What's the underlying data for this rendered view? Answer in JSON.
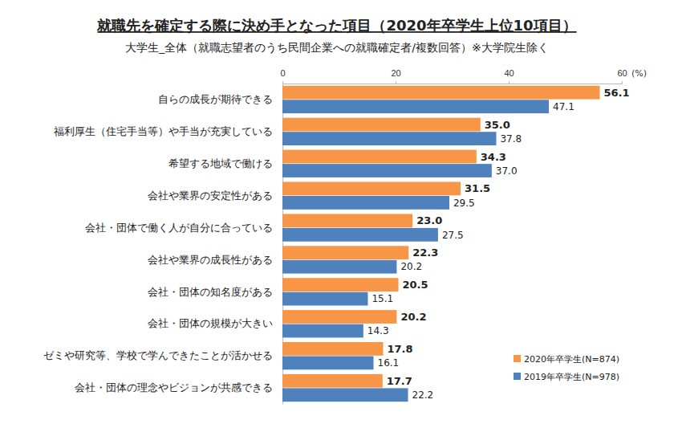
{
  "chart_data": {
    "type": "bar",
    "orientation": "horizontal",
    "title": "就職先を確定する際に決め手となった項目（2020年卒学生上位10項目）",
    "subtitle": "大学生_全体（就職志望者のうち民間企業への就職確定者/複数回答）※大学院生除く",
    "xlabel": "(%)",
    "categories": [
      "自らの成長が期待できる",
      "福利厚生（住宅手当等）や手当が充実している",
      "希望する地域で働ける",
      "会社や業界の安定性がある",
      "会社・団体で働く人が自分に合っている",
      "会社や業界の成長性がある",
      "会社・団体の知名度がある",
      "会社・団体の規模が大きい",
      "ゼミや研究等、学校で学んできたことが活かせる",
      "会社・団体の理念やビジョンが共感できる"
    ],
    "series": [
      {
        "name": "2020年卒学生(N=874)",
        "color": "#f79646",
        "values": [
          56.1,
          35.0,
          34.3,
          31.5,
          23.0,
          22.3,
          20.5,
          20.2,
          17.8,
          17.7
        ],
        "value_labels": [
          "56.1",
          "35.0",
          "34.3",
          "31.5",
          "23.0",
          "22.3",
          "20.5",
          "20.2",
          "17.8",
          "17.7"
        ]
      },
      {
        "name": "2019年卒学生(N=978)",
        "color": "#4f81bd",
        "values": [
          47.1,
          37.8,
          37.0,
          29.5,
          27.5,
          20.2,
          15.1,
          14.3,
          16.1,
          22.2
        ],
        "value_labels": [
          "47.1",
          "37.8",
          "37.0",
          "29.5",
          "27.5",
          "20.2",
          "15.1",
          "14.3",
          "16.1",
          "22.2"
        ]
      }
    ],
    "xlim": [
      0,
      60
    ],
    "xticks": [
      0,
      20,
      40,
      60
    ],
    "grid": false,
    "data_labels": true,
    "legend": "lower right"
  }
}
